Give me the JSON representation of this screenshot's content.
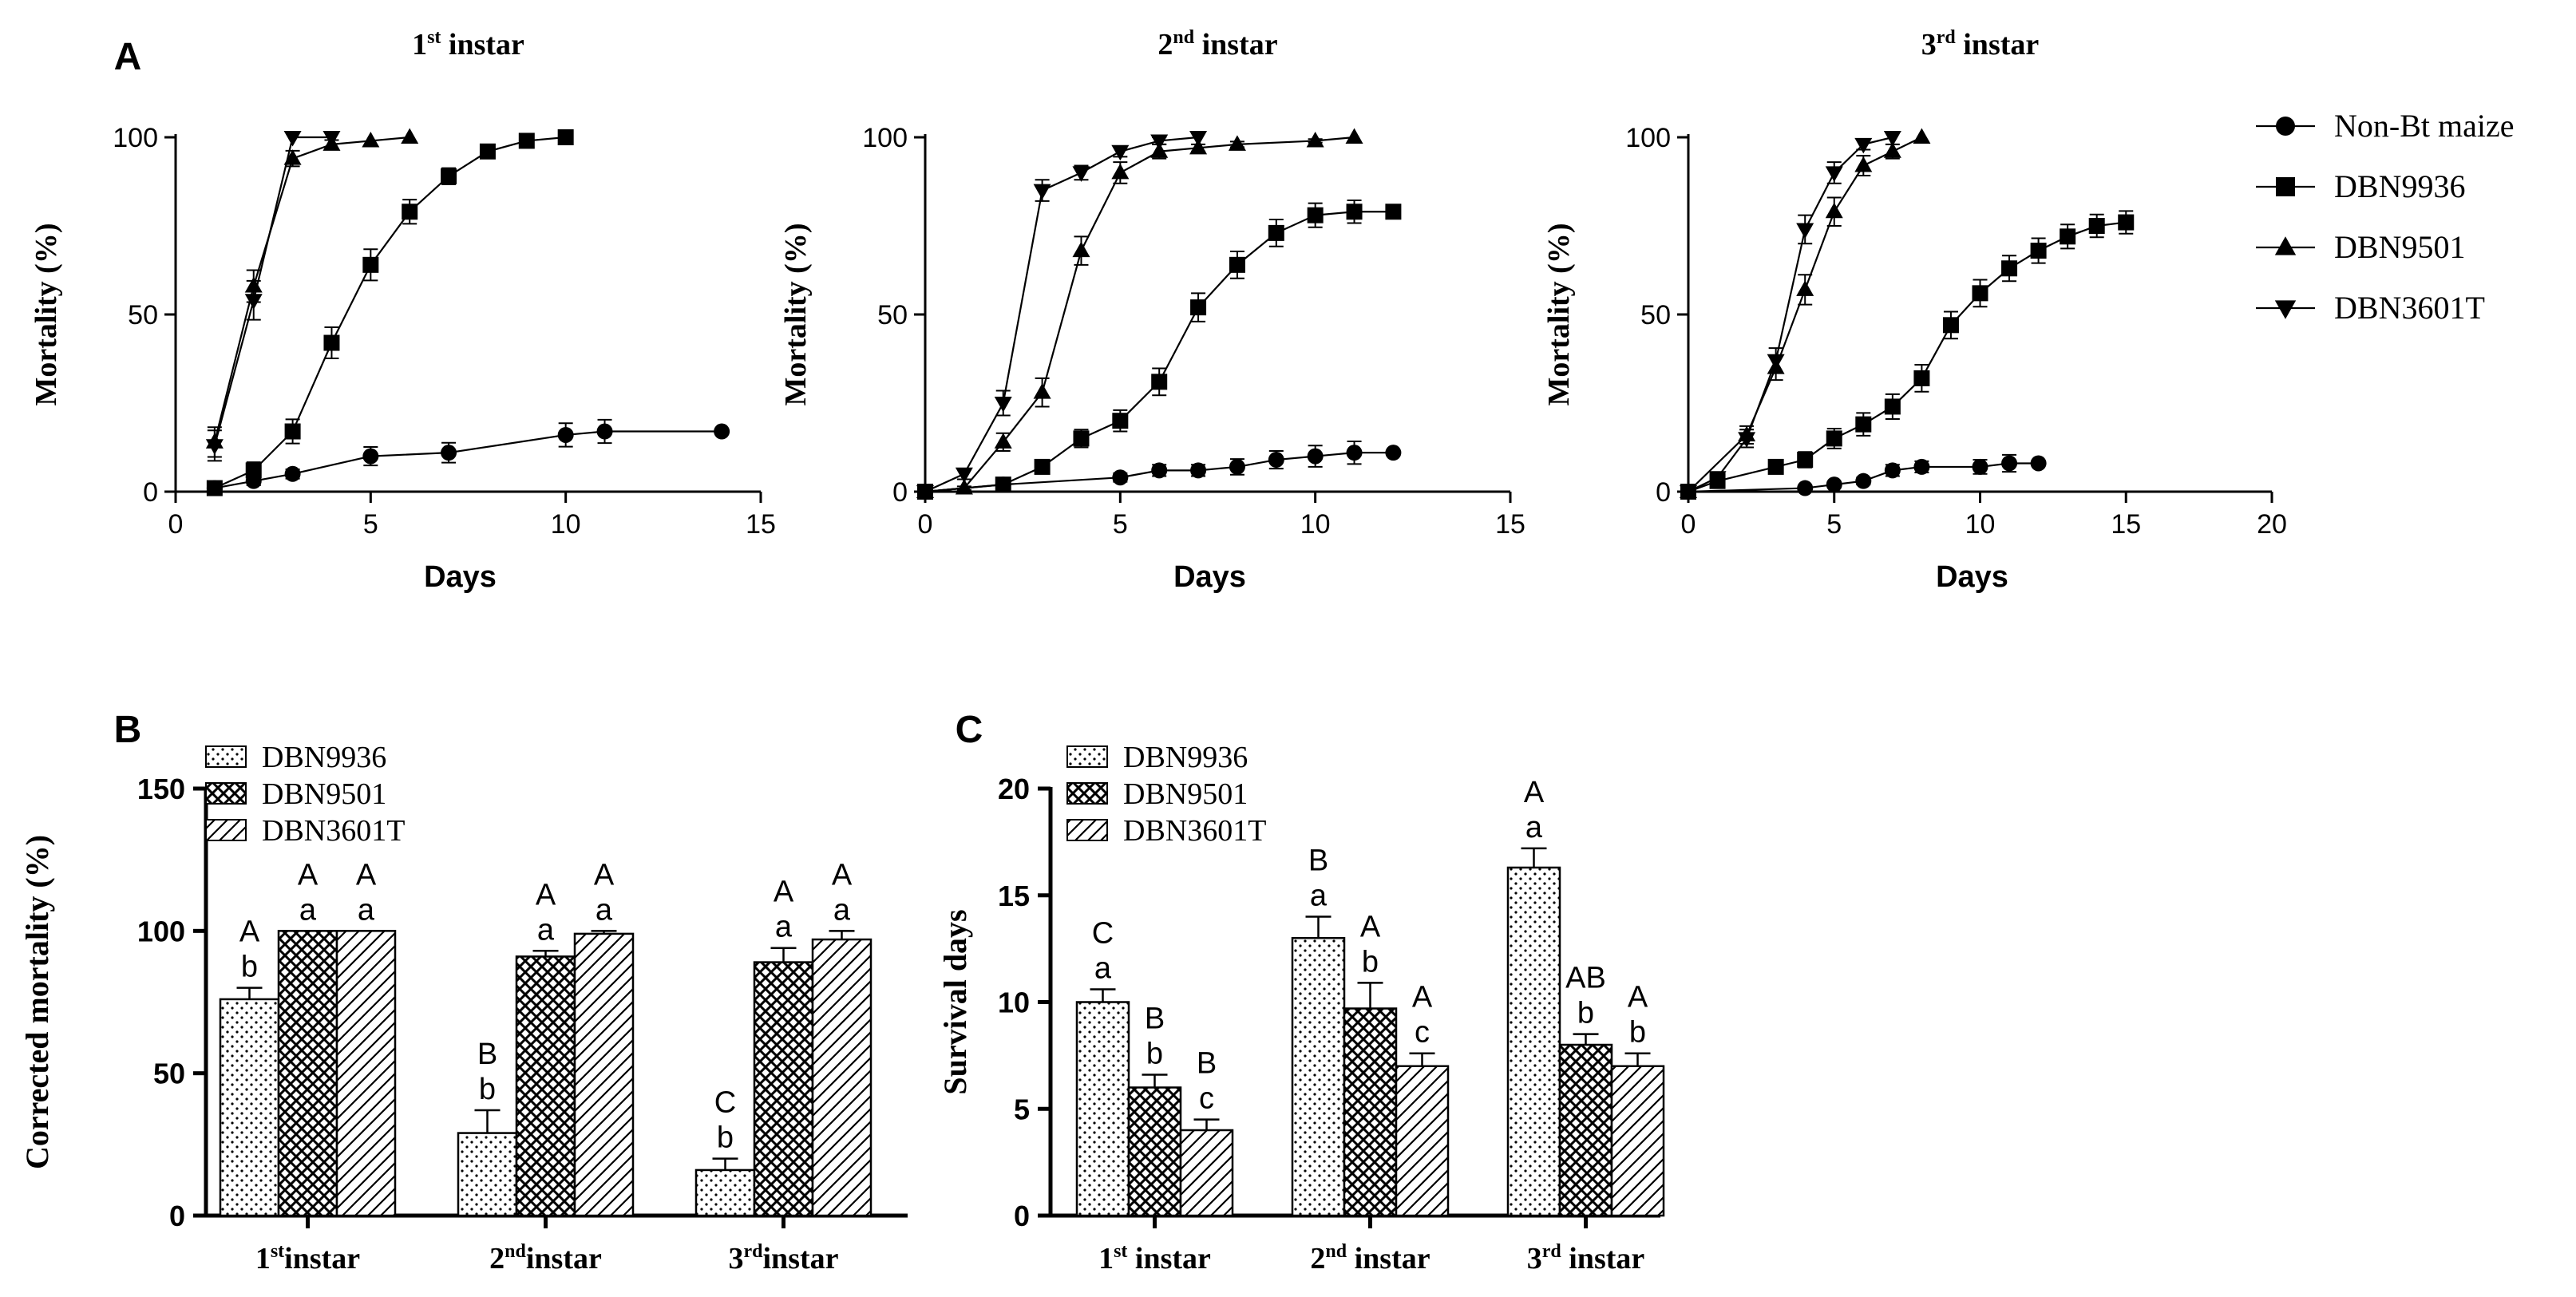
{
  "panels": {
    "A": {
      "label": "A",
      "legend": [
        "Non-Bt maize",
        "DBN9936",
        "DBN9501",
        "DBN3601T"
      ],
      "charts": [
        {
          "type": "line",
          "title_main": "1",
          "title_sup": "st",
          "title_rest": " instar",
          "xlabel": "Days",
          "ylabel": "Mortality (%)",
          "xlim": [
            0,
            15
          ],
          "ylim": [
            0,
            100
          ],
          "xticks": [
            "0",
            "5",
            "10",
            "15"
          ],
          "yticks": [
            "0",
            "50",
            "100"
          ],
          "series": [
            {
              "name": "Non-Bt maize",
              "marker": "circle",
              "x": [
                1,
                2,
                3,
                5,
                7,
                10,
                11,
                14
              ],
              "y": [
                1,
                3,
                5,
                10,
                11,
                16,
                17,
                17
              ],
              "err": [
                0.6,
                1.2,
                1.3,
                2.6,
                2.8,
                3.3,
                3.3,
                0
              ]
            },
            {
              "name": "DBN9936",
              "marker": "square",
              "x": [
                1,
                2,
                3,
                4,
                5,
                6,
                7,
                8,
                9,
                10
              ],
              "y": [
                1,
                6,
                17,
                42,
                64,
                79,
                89,
                96,
                99,
                100
              ],
              "err": [
                0.8,
                2.3,
                3.4,
                4.4,
                4.4,
                3.4,
                2.3,
                1.2,
                0.8,
                0
              ]
            },
            {
              "name": "DBN9501",
              "marker": "triangle-up",
              "x": [
                1,
                2,
                3,
                4,
                5,
                6
              ],
              "y": [
                14,
                58,
                94,
                98,
                99,
                100
              ],
              "err": [
                4.2,
                4.5,
                2.2,
                1.2,
                0,
                0
              ]
            },
            {
              "name": "DBN3601T",
              "marker": "triangle-down",
              "x": [
                1,
                2,
                3,
                4
              ],
              "y": [
                13,
                54,
                100,
                100
              ],
              "err": [
                4.3,
                5.5,
                0,
                0
              ]
            }
          ]
        },
        {
          "type": "line",
          "title_main": "2",
          "title_sup": "nd",
          "title_rest": " instar",
          "xlabel": "Days",
          "ylabel": "Mortality (%)",
          "xlim": [
            0,
            15
          ],
          "ylim": [
            0,
            100
          ],
          "xticks": [
            "0",
            "5",
            "10",
            "15"
          ],
          "yticks": [
            "0",
            "50",
            "100"
          ],
          "series": [
            {
              "name": "Non-Bt maize",
              "marker": "circle",
              "x": [
                0,
                2,
                5,
                6,
                7,
                8,
                9,
                10,
                11,
                12
              ],
              "y": [
                0,
                2,
                4,
                6,
                6,
                7,
                9,
                10,
                11,
                11
              ],
              "err": [
                0,
                0.8,
                1.2,
                1.6,
                1.6,
                2.2,
                2.5,
                3,
                3.2,
                0
              ]
            },
            {
              "name": "DBN9936",
              "marker": "square",
              "x": [
                0,
                2,
                3,
                4,
                5,
                6,
                7,
                8,
                9,
                10,
                11,
                12
              ],
              "y": [
                0,
                2,
                7,
                15,
                20,
                31,
                52,
                64,
                73,
                78,
                79,
                79
              ],
              "err": [
                0,
                1,
                1.8,
                2.5,
                3,
                3.8,
                4,
                3.8,
                3.8,
                3.4,
                3.2,
                0
              ]
            },
            {
              "name": "DBN9501",
              "marker": "triangle-up",
              "x": [
                0,
                1,
                2,
                3,
                4,
                5,
                6,
                7,
                8,
                10,
                11
              ],
              "y": [
                0,
                1,
                14,
                28,
                68,
                90,
                96,
                97,
                98,
                99,
                100
              ],
              "err": [
                0,
                0.5,
                2.5,
                4,
                4,
                3,
                2,
                1,
                0.8,
                0.5,
                0
              ]
            },
            {
              "name": "DBN3601T",
              "marker": "triangle-down",
              "x": [
                0,
                1,
                2,
                3,
                4,
                5,
                6,
                7
              ],
              "y": [
                0,
                5,
                25,
                85,
                90,
                96,
                99,
                100
              ],
              "err": [
                0,
                1.5,
                3.5,
                3,
                2,
                1.5,
                1,
                0
              ]
            }
          ]
        },
        {
          "type": "line",
          "title_main": "3",
          "title_sup": "rd",
          "title_rest": " instar",
          "xlabel": "Days",
          "ylabel": "Mortality (%)",
          "xlim": [
            0,
            20
          ],
          "ylim": [
            0,
            100
          ],
          "xticks": [
            "0",
            "5",
            "10",
            "15",
            "20"
          ],
          "yticks": [
            "0",
            "50",
            "100"
          ],
          "series": [
            {
              "name": "Non-Bt maize",
              "marker": "circle",
              "x": [
                0,
                4,
                5,
                6,
                7,
                8,
                10,
                11,
                12
              ],
              "y": [
                0,
                1,
                2,
                3,
                6,
                7,
                7,
                8,
                8
              ],
              "err": [
                0,
                0.5,
                0.8,
                1,
                1.6,
                1.6,
                2,
                2.4,
                0
              ]
            },
            {
              "name": "DBN9936",
              "marker": "square",
              "x": [
                0,
                1,
                3,
                4,
                5,
                6,
                7,
                8,
                9,
                10,
                11,
                12,
                13,
                14,
                15
              ],
              "y": [
                0,
                3,
                7,
                9,
                15,
                19,
                24,
                32,
                47,
                56,
                63,
                68,
                72,
                75,
                76
              ],
              "err": [
                0,
                1,
                1.8,
                2.2,
                2.8,
                3.2,
                3.5,
                3.8,
                3.8,
                3.8,
                3.6,
                3.5,
                3.4,
                3.2,
                3.2
              ]
            },
            {
              "name": "DBN9501",
              "marker": "triangle-up",
              "x": [
                0,
                2,
                3,
                4,
                5,
                6,
                7,
                8
              ],
              "y": [
                0,
                16,
                35,
                57,
                79,
                92,
                96,
                100
              ],
              "err": [
                0,
                2.5,
                3.5,
                4.2,
                4,
                2.8,
                2,
                0
              ]
            },
            {
              "name": "DBN3601T",
              "marker": "triangle-down",
              "x": [
                0,
                1,
                2,
                3,
                4,
                5,
                6,
                7
              ],
              "y": [
                0,
                4,
                15,
                37,
                74,
                90,
                98,
                100
              ],
              "err": [
                0,
                1.5,
                2.5,
                3.5,
                4,
                3,
                1.5,
                0
              ]
            }
          ]
        }
      ]
    },
    "B": {
      "label": "B",
      "type": "bar",
      "ylabel": "Corrected mortality (%)",
      "ylim": [
        0,
        150
      ],
      "yticks": [
        "0",
        "50",
        "100",
        "150"
      ],
      "categories": [
        {
          "main": "1",
          "sup": "st",
          "rest": "instar"
        },
        {
          "main": "2",
          "sup": "nd",
          "rest": "instar"
        },
        {
          "main": "3",
          "sup": "rd",
          "rest": "instar"
        }
      ],
      "series": [
        {
          "name": "DBN9936",
          "pattern": "dots",
          "values": [
            76,
            29,
            16
          ],
          "err": [
            4,
            8,
            4
          ],
          "upper": [
            "A",
            "B",
            "C"
          ],
          "lower": [
            "b",
            "b",
            "b"
          ]
        },
        {
          "name": "DBN9501",
          "pattern": "cross",
          "values": [
            100,
            91,
            89
          ],
          "err": [
            0,
            2,
            5
          ],
          "upper": [
            "A",
            "A",
            "A"
          ],
          "lower": [
            "a",
            "a",
            "a"
          ]
        },
        {
          "name": "DBN3601T",
          "pattern": "diag",
          "values": [
            100,
            99,
            97
          ],
          "err": [
            0,
            1,
            3
          ],
          "upper": [
            "A",
            "A",
            "A"
          ],
          "lower": [
            "a",
            "a",
            "a"
          ]
        }
      ]
    },
    "C": {
      "label": "C",
      "type": "bar",
      "ylabel": "Survival days",
      "ylim": [
        0,
        20
      ],
      "yticks": [
        "0",
        "5",
        "10",
        "15",
        "20"
      ],
      "categories": [
        {
          "main": "1",
          "sup": "st",
          "rest": " instar"
        },
        {
          "main": "2",
          "sup": "nd",
          "rest": " instar"
        },
        {
          "main": "3",
          "sup": "rd",
          "rest": " instar"
        }
      ],
      "series": [
        {
          "name": "DBN9936",
          "pattern": "dots",
          "values": [
            10,
            13,
            16.3
          ],
          "err": [
            0.6,
            1.0,
            0.9
          ],
          "upper": [
            "C",
            "B",
            "A"
          ],
          "lower": [
            "a",
            "a",
            "a"
          ]
        },
        {
          "name": "DBN9501",
          "pattern": "cross",
          "values": [
            6,
            9.7,
            8
          ],
          "err": [
            0.6,
            1.2,
            0.5
          ],
          "upper": [
            "B",
            "A",
            "AB"
          ],
          "lower": [
            "b",
            "b",
            "b"
          ]
        },
        {
          "name": "DBN3601T",
          "pattern": "diag",
          "values": [
            4,
            7,
            7
          ],
          "err": [
            0.5,
            0.6,
            0.6
          ],
          "upper": [
            "B",
            "A",
            "A"
          ],
          "lower": [
            "c",
            "c",
            "b"
          ]
        }
      ]
    }
  }
}
